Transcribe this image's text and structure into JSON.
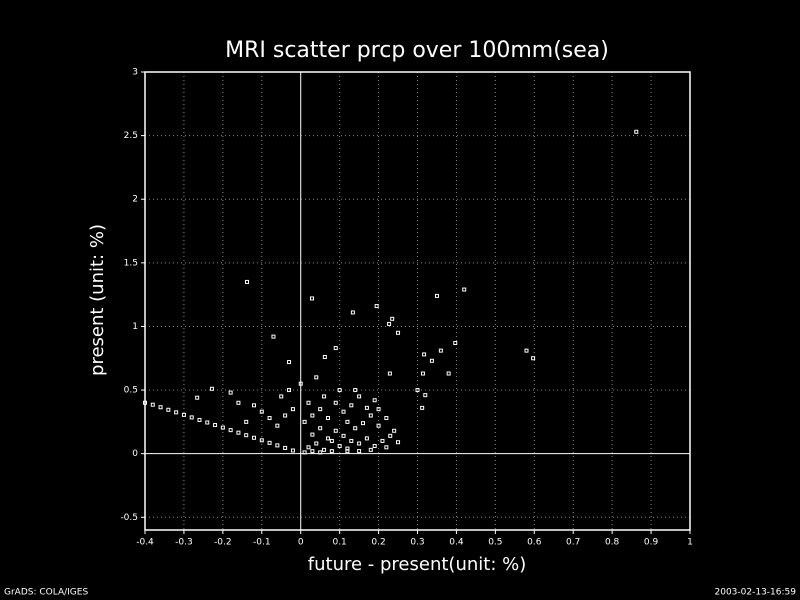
{
  "chart_data": {
    "type": "scatter",
    "title": "MRI scatter prcp over 100mm(sea)",
    "xlabel": "future - present(unit: %)",
    "ylabel": "present (unit: %)",
    "footer_left": "GrADS: COLA/IGES",
    "footer_right": "2003-02-13-16:59",
    "color": "#ffffff",
    "grid": true,
    "xlim": [
      -0.4,
      1
    ],
    "ylim": [
      -0.6,
      3
    ],
    "xticks": [
      -0.4,
      -0.3,
      -0.2,
      -0.1,
      0,
      0.1,
      0.2,
      0.3,
      0.4,
      0.5,
      0.6,
      0.7,
      0.8,
      0.9,
      1
    ],
    "yticks": [
      -0.5,
      0,
      0.5,
      1,
      1.5,
      2,
      2.5,
      3
    ],
    "x": [
      0.862,
      -0.138,
      0.029,
      0.134,
      0.195,
      0.35,
      0.42,
      0.227,
      0.235,
      0.25,
      -0.07,
      0.09,
      0.397,
      0.36,
      0.58,
      0.597,
      0.317,
      0.337,
      -0.03,
      0.062,
      0.229,
      0.314,
      0.38,
      0.3,
      0.32,
      0.312,
      -0.266,
      -0.228,
      -0.18,
      0.02,
      0.04,
      0.06,
      0.08,
      0.1,
      0.12,
      0.03,
      0.05,
      0.07,
      0.09,
      0.11,
      0.13,
      0.15,
      0.17,
      0.19,
      0.21,
      0.23,
      0.25,
      0.14,
      0.16,
      0.18,
      0.2,
      0.22,
      0.24,
      0.01,
      0.03,
      0.05,
      0.07,
      0.09,
      0.11,
      0.13,
      0.15,
      0.17,
      0.19,
      0.06,
      0.1,
      0.02,
      -0.02,
      -0.04,
      -0.06,
      -0.08,
      -0.1,
      -0.12,
      -0.14,
      -0.16,
      -0.05,
      -0.03,
      0.0,
      0.04,
      0.14,
      0.2,
      0.22,
      0.12,
      0.08,
      0.01,
      0.03,
      0.05,
      0.15,
      0.18,
      0.12,
      -0.4,
      -0.36,
      -0.32,
      -0.28,
      -0.24,
      -0.2,
      -0.16,
      -0.12,
      -0.08,
      -0.04,
      -0.38,
      -0.34,
      -0.3,
      -0.26,
      -0.22,
      -0.18,
      -0.14,
      -0.1,
      -0.06,
      -0.02
    ],
    "y": [
      2.53,
      1.35,
      1.22,
      1.11,
      1.16,
      1.24,
      1.29,
      1.02,
      1.06,
      0.95,
      0.92,
      0.83,
      0.87,
      0.81,
      0.81,
      0.75,
      0.78,
      0.73,
      0.72,
      0.76,
      0.63,
      0.63,
      0.63,
      0.5,
      0.46,
      0.36,
      0.44,
      0.51,
      0.48,
      0.05,
      0.08,
      0.03,
      0.1,
      0.06,
      0.04,
      0.15,
      0.2,
      0.12,
      0.18,
      0.14,
      0.1,
      0.08,
      0.12,
      0.06,
      0.1,
      0.14,
      0.09,
      0.2,
      0.24,
      0.3,
      0.22,
      0.28,
      0.18,
      0.25,
      0.3,
      0.35,
      0.28,
      0.4,
      0.33,
      0.38,
      0.45,
      0.36,
      0.42,
      0.45,
      0.5,
      0.4,
      0.35,
      0.3,
      0.22,
      0.28,
      0.33,
      0.38,
      0.25,
      0.4,
      0.45,
      0.5,
      0.55,
      0.6,
      0.5,
      0.35,
      0.05,
      0.25,
      0.02,
      0.01,
      0.02,
      0.01,
      0.02,
      0.03,
      0.02,
      0.4,
      0.365,
      0.325,
      0.285,
      0.245,
      0.205,
      0.165,
      0.125,
      0.085,
      0.045,
      0.385,
      0.345,
      0.305,
      0.265,
      0.225,
      0.185,
      0.145,
      0.105,
      0.065,
      0.025
    ]
  }
}
